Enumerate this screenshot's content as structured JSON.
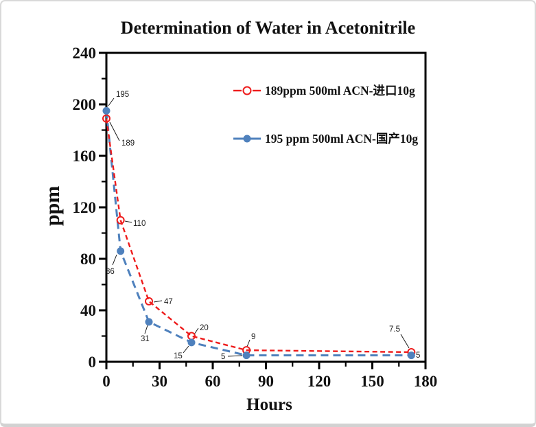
{
  "chart_data": {
    "type": "line",
    "title": "Determination of Water in Acetonitrile",
    "xlabel": "Hours",
    "ylabel": "ppm",
    "xlim": [
      0,
      180
    ],
    "ylim": [
      0,
      240
    ],
    "x_major_ticks": [
      0,
      30,
      60,
      90,
      120,
      150,
      180
    ],
    "x_minor_step": 15,
    "y_major_ticks": [
      0,
      40,
      80,
      120,
      160,
      200,
      240
    ],
    "y_minor_step": 20,
    "grid": false,
    "legend_position": "inside-upper-right",
    "x": [
      0,
      8,
      24,
      48,
      79,
      172
    ],
    "series": [
      {
        "name": "189ppm  500ml ACN-进口10g",
        "color": "#ee1c1c",
        "marker": "open-circle",
        "line": "dashed",
        "values": [
          189,
          110,
          47,
          20,
          9,
          7.5
        ]
      },
      {
        "name": "195 ppm 500ml ACN-国产10g",
        "color": "#4f81bd",
        "marker": "filled-circle",
        "line": "dashed",
        "values": [
          195,
          86,
          31,
          15,
          5,
          5
        ]
      }
    ],
    "point_labels": [
      [
        "189",
        "110",
        "47",
        "20",
        "9",
        "7.5"
      ],
      [
        "195",
        "86",
        "31",
        "15",
        "5",
        "5"
      ]
    ],
    "axis_color": "#000000",
    "background_color": "#ffffff"
  }
}
